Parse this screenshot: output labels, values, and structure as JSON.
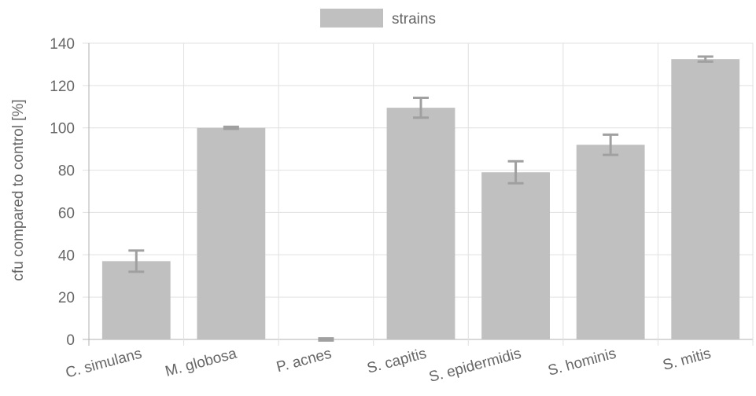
{
  "chart_data": {
    "type": "bar",
    "title": "",
    "xlabel": "",
    "ylabel": "cfu compared to control [%]",
    "ylim": [
      0,
      140
    ],
    "yticks": [
      0,
      20,
      40,
      60,
      80,
      100,
      120,
      140
    ],
    "grid": true,
    "legend_position": "top",
    "categories": [
      "C. simulans",
      "M. globosa",
      "P. acnes",
      "S. capitis",
      "S. epidermidis",
      "S. hominis",
      "S. mitis"
    ],
    "series": [
      {
        "name": "strains",
        "color": "#c0c0c0",
        "values": [
          37,
          100,
          0,
          109.5,
          79,
          92,
          132.5
        ],
        "error": [
          5,
          0.5,
          0.5,
          4.7,
          5.2,
          4.8,
          1.2
        ]
      }
    ]
  },
  "colors": {
    "bar": "#c0c0c0",
    "error_bar": "#a0a0a0",
    "grid": "#e0e0e0",
    "axis": "#b0b0b0",
    "text": "#666666"
  }
}
